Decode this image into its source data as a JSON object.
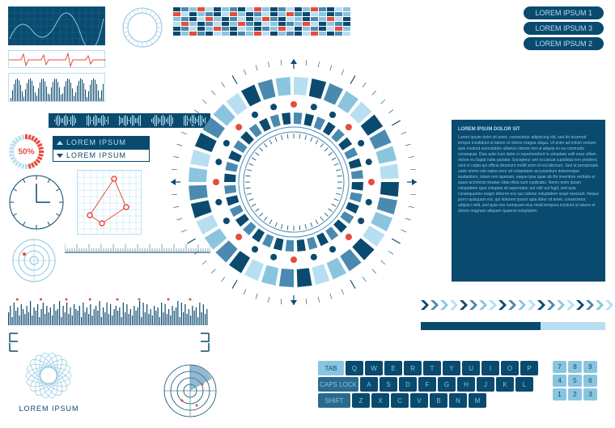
{
  "colors": {
    "dark_blue": "#0a4a6e",
    "mid_blue": "#4a8ab0",
    "light_blue": "#8ac5e0",
    "pale_blue": "#b8dff1",
    "red": "#e74c3c",
    "white": "#ffffff",
    "grid_line": "#1a6a8e"
  },
  "pills": {
    "items": [
      "LOREM IPSUM 1",
      "LOREM IPSUM 3",
      "LOREM IPSUM 2"
    ]
  },
  "color_grid": {
    "rows": 6,
    "cols": 22,
    "palette": [
      "#0a4a6e",
      "#e74c3c",
      "#4a8ab0",
      "#8ac5e0",
      "#b8dff1"
    ]
  },
  "pct_gauge": {
    "value": 50,
    "label": "50%"
  },
  "lorem_box": {
    "top": "LOREM IPSUM",
    "bot": "LOREM IPSUM"
  },
  "graph_panel": {
    "points": [
      [
        15,
        55
      ],
      [
        45,
        10
      ],
      [
        60,
        45
      ],
      [
        30,
        65
      ]
    ],
    "point_color": "#e74c3c",
    "line_color": "#e74c3c",
    "grid_color": "#b8dff1",
    "bg": "#ffffff"
  },
  "ruler": {
    "major": 13,
    "minor": 5
  },
  "spectrum": {
    "bars": 110,
    "heights": [
      8,
      12,
      5,
      14,
      9,
      11,
      6,
      13,
      10,
      7,
      12,
      8,
      15,
      6,
      11,
      9,
      13,
      5,
      10,
      14,
      7,
      12,
      8,
      11,
      6,
      13,
      9,
      10,
      15,
      5,
      12,
      8,
      14,
      7,
      11,
      6,
      13,
      10,
      9,
      12,
      5,
      14,
      8,
      11,
      7,
      13,
      6,
      10,
      12,
      9,
      15,
      5,
      11,
      8,
      14,
      7,
      13,
      6,
      10,
      12,
      9,
      11,
      5,
      14,
      8,
      13,
      7,
      10,
      6,
      12,
      9,
      11,
      15,
      5,
      14,
      8,
      13,
      7,
      10,
      6,
      12,
      9,
      11,
      5,
      14,
      8,
      13,
      7,
      10,
      6,
      12,
      9,
      11,
      15,
      5,
      14,
      8,
      13,
      7,
      10,
      6,
      12,
      9,
      11,
      5,
      14,
      8,
      13,
      7,
      10
    ],
    "dots": [
      5,
      18,
      32,
      45,
      60,
      72,
      88,
      100
    ],
    "bar_color": "#0a4a6e",
    "dot_color": "#e74c3c"
  },
  "spiro": {
    "label": "LOREM IPSUM",
    "color": "#8ac5e0",
    "rings": 18
  },
  "radar": {
    "rings": 4,
    "sweep": 110,
    "blips": [
      [
        15,
        -8
      ],
      [
        -10,
        12
      ],
      [
        8,
        18
      ]
    ],
    "ring_color": "#0a4a6e",
    "sweep_color": "#4a8ab0",
    "blip_color": "#e74c3c"
  },
  "central_dial": {
    "outer_ticks": 60,
    "segments": 18,
    "seg_colors": [
      "#0a4a6e",
      "#4a8ab0",
      "#8ac5e0",
      "#b8dff1"
    ],
    "dots": 24,
    "dot_colors": [
      "#0a4a6e",
      "#e74c3c"
    ],
    "inner_ring_colors": [
      "#0a4a6e",
      "#4a8ab0"
    ],
    "crosshair_color": "#0a4a6e"
  },
  "text_panel": {
    "title": "LOREM IPSUM DOLOR SIT",
    "body": "Lorem ipsum dolor sit amet, consectetur adipiscing elit, sed do eiusmod tempor incididunt ut labore et dolore magna aliqua. Ut enim ad minim veniam, quis nostrud exercitation ullamco laboris nisi ut aliquip ex ea commodo consequat. Duis aute irure dolor in reprehenderit in voluptate velit esse cillum dolore eu fugiat nulla pariatur. Excepteur sint occaecat cupidatat non proident, sunt in culpa qui officia deserunt mollit anim id est laborum. Sed ut perspiciatis unde omnis iste natus error sit voluptatem accusantium doloremque laudantium, totam rem aperiam, eaque ipsa quae ab illo inventore veritatis et quasi architecto beatae vitae dicta sunt explicabo. Nemo enim ipsam voluptatem quia voluptas sit aspernatur aut odit aut fugit, sed quia consequuntur magni dolores eos qui ratione voluptatem sequi nesciunt. Neque porro quisquam est, qui dolorem ipsum quia dolor sit amet, consectetur, adipisci velit, sed quia non numquam eius modi tempora incidunt ut labore et dolore magnam aliquam quaerat voluptatem."
  },
  "chevrons": {
    "count": 20,
    "colors": [
      "#0a4a6e",
      "#4a8ab0",
      "#8ac5e0",
      "#b8dff1"
    ]
  },
  "bar_gauge": {
    "fill": 0.65,
    "bg": "#b8dff1",
    "fg": "#0a4a6e"
  },
  "keyboard": {
    "row1": [
      "TAB",
      "Q",
      "W",
      "E",
      "R",
      "T",
      "Y",
      "U",
      "I",
      "O",
      "P"
    ],
    "row2": [
      "CAPS LOCK",
      "A",
      "S",
      "D",
      "F",
      "G",
      "H",
      "J",
      "K",
      "L"
    ],
    "row3": [
      "SHIFT",
      "Z",
      "X",
      "C",
      "V",
      "B",
      "N",
      "M"
    ],
    "special_style": {
      "TAB": "light",
      "CAPS LOCK": "med",
      "SHIFT": "med"
    }
  },
  "numpad": {
    "keys": [
      "7",
      "8",
      "9",
      "4",
      "5",
      "6",
      "1",
      "2",
      "3"
    ]
  }
}
